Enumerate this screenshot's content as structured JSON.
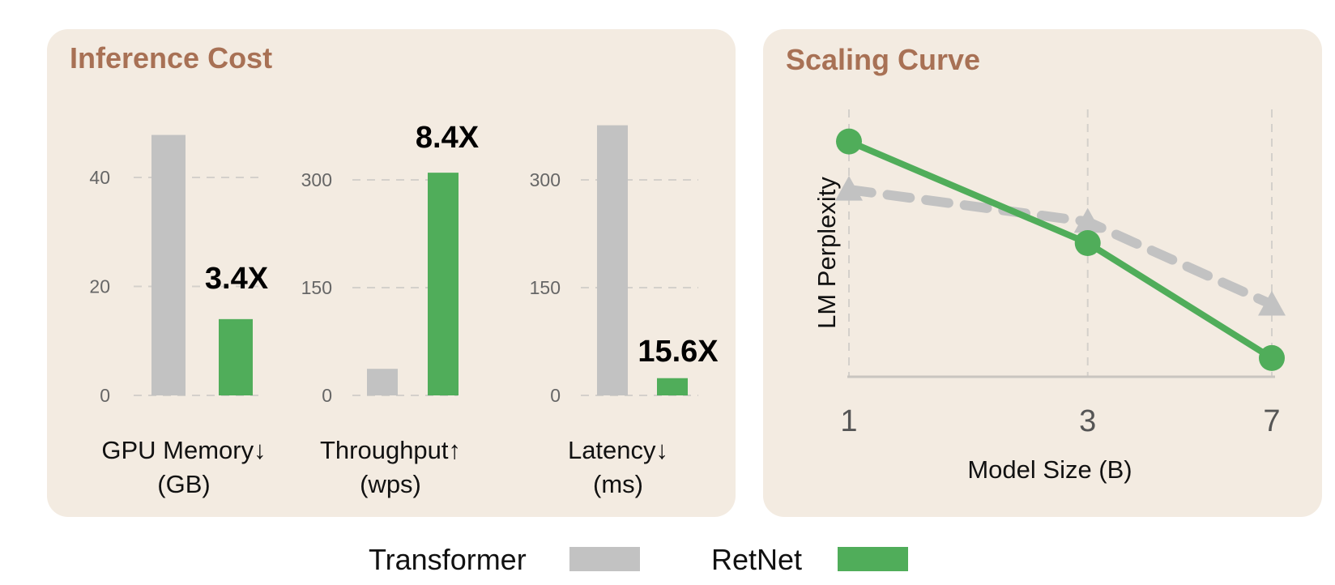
{
  "colors": {
    "panel_bg": "#f3ebe1",
    "title": "#a87155",
    "transformer": "#c2c2c2",
    "retnet": "#50ad5a"
  },
  "legend": {
    "transformer_label": "Transformer",
    "retnet_label": "RetNet"
  },
  "chart_data": [
    {
      "type": "bar",
      "title": "Inference Cost",
      "subcharts": [
        {
          "label_line1": "GPU Memory↓",
          "label_line2": "(GB)",
          "ylim": [
            0,
            48
          ],
          "yticks": [
            0,
            20,
            40
          ],
          "ytick_labels": [
            "0",
            "20",
            "40"
          ],
          "series": [
            {
              "name": "Transformer",
              "value": 47.8
            },
            {
              "name": "RetNet",
              "value": 14.0
            }
          ],
          "ratio_label": "3.4X"
        },
        {
          "label_line1": "Throughput↑",
          "label_line2": "(wps)",
          "ylim": [
            0,
            360
          ],
          "yticks": [
            0,
            150,
            300
          ],
          "ytick_labels": [
            "0",
            "150",
            "300"
          ],
          "series": [
            {
              "name": "Transformer",
              "value": 37
            },
            {
              "name": "RetNet",
              "value": 310
            }
          ],
          "ratio_label": "8.4X"
        },
        {
          "label_line1": "Latency↓",
          "label_line2": "(ms)",
          "ylim": [
            0,
            360
          ],
          "yticks": [
            0,
            150,
            300
          ],
          "ytick_labels": [
            "0",
            "150",
            "300"
          ],
          "series": [
            {
              "name": "Transformer",
              "value": 376
            },
            {
              "name": "RetNet",
              "value": 24
            }
          ],
          "ratio_label": "15.6X"
        }
      ]
    },
    {
      "type": "line",
      "title": "Scaling Curve",
      "xlabel": "Model Size (B)",
      "ylabel": "LM Perplexity",
      "x": [
        1,
        3,
        7
      ],
      "xtick_labels": [
        "1",
        "3",
        "7"
      ],
      "x_scale": "log",
      "y_ticks_shown": false,
      "series": [
        {
          "name": "RetNet",
          "values": [
            0.88,
            0.5,
            0.07
          ],
          "marker": "circle",
          "line": "solid"
        },
        {
          "name": "Transformer",
          "values": [
            0.7,
            0.58,
            0.27
          ],
          "marker": "triangle",
          "line": "dashed"
        }
      ],
      "y_note": "relative position, no y values printed"
    }
  ]
}
